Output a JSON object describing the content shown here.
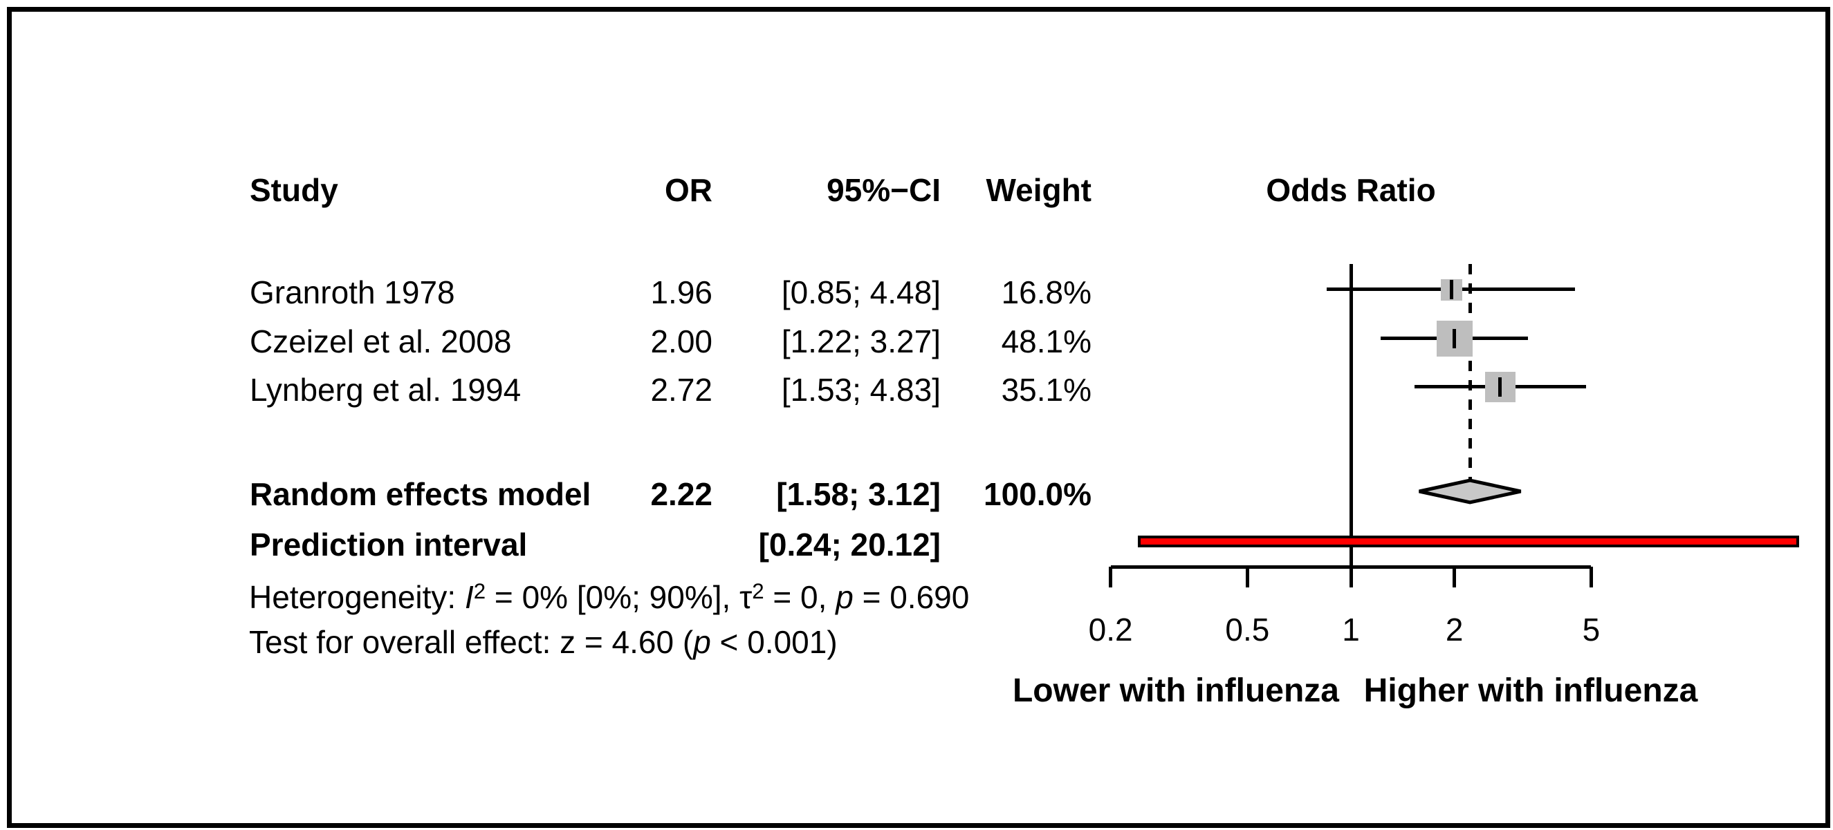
{
  "chart_data": {
    "type": "forest",
    "title": "Odds Ratio",
    "effect_measure": "OR",
    "x_scale": "log10",
    "axis_ticks": [
      0.2,
      0.5,
      1,
      2,
      5
    ],
    "axis_tick_labels": [
      "0.2",
      "0.5",
      "1",
      "2",
      "5"
    ],
    "reference_line": 1,
    "summary_dashed_line": 2.22,
    "xlabel_left": "Lower with influenza",
    "xlabel_right": "Higher with influenza",
    "table_headers": {
      "study": "Study",
      "or": "OR",
      "ci": "95%−CI",
      "weight": "Weight"
    },
    "studies": [
      {
        "name": "Granroth 1978",
        "or": 1.96,
        "lo": 0.85,
        "hi": 4.48,
        "weight": 16.8,
        "or_text": "1.96",
        "ci_text": "[0.85; 4.48]",
        "weight_text": "16.8%"
      },
      {
        "name": "Czeizel et al. 2008",
        "or": 2.0,
        "lo": 1.22,
        "hi": 3.27,
        "weight": 48.1,
        "or_text": "2.00",
        "ci_text": "[1.22; 3.27]",
        "weight_text": "48.1%"
      },
      {
        "name": "Lynberg et al. 1994",
        "or": 2.72,
        "lo": 1.53,
        "hi": 4.83,
        "weight": 35.1,
        "or_text": "2.72",
        "ci_text": "[1.53; 4.83]",
        "weight_text": "35.1%"
      }
    ],
    "summary": {
      "label": "Random effects model",
      "or": 2.22,
      "lo": 1.58,
      "hi": 3.12,
      "weight": 100.0,
      "or_text": "2.22",
      "ci_text": "[1.58; 3.12]",
      "weight_text": "100.0%"
    },
    "prediction_interval": {
      "label": "Prediction interval",
      "lo": 0.24,
      "hi": 20.12,
      "ci_text": "[0.24; 20.12]"
    },
    "heterogeneity_parts": [
      {
        "text": "Heterogeneity: "
      },
      {
        "text": "I",
        "italic": true
      },
      {
        "text": "2",
        "sup": true
      },
      {
        "text": " = 0% [0%; 90%], "
      },
      {
        "text": "τ"
      },
      {
        "text": "2",
        "sup": true
      },
      {
        "text": " = 0, "
      },
      {
        "text": "p",
        "italic": true
      },
      {
        "text": " = 0.690"
      }
    ],
    "test_parts": [
      {
        "text": "Test for overall effect: z = 4.60 ("
      },
      {
        "text": "p",
        "italic": true
      },
      {
        "text": " < 0.001)"
      }
    ],
    "colors": {
      "square": "#bebebe",
      "diamond_fill": "#c8c8c8",
      "prediction_bar": "#ff0000",
      "lines": "#000000"
    }
  }
}
